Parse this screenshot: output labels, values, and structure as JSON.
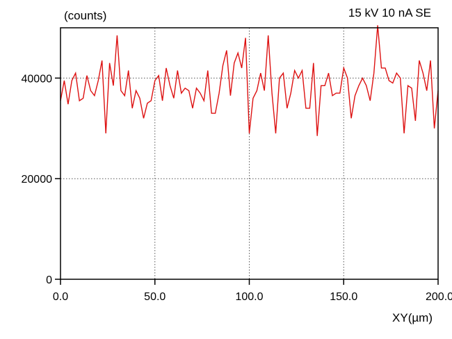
{
  "chart_data": {
    "type": "line",
    "ylabel": "(counts)",
    "xlabel": "XY(µm)",
    "annotation": "15 kV 10 nA SE",
    "xlim": [
      0,
      200
    ],
    "ylim": [
      0,
      50000
    ],
    "x_ticks": [
      0,
      50,
      100,
      150,
      200
    ],
    "x_tick_labels": [
      "0.0",
      "50.0",
      "100.0",
      "150.0",
      "200.0"
    ],
    "y_ticks": [
      0,
      20000,
      40000
    ],
    "y_tick_labels": [
      "0",
      "20000",
      "40000"
    ],
    "grid": true,
    "line_color": "#dd1111",
    "series": [
      {
        "x": [
          0,
          2,
          4,
          6,
          8,
          10,
          12,
          14,
          16,
          18,
          20,
          22,
          24,
          26,
          28,
          30,
          32,
          34,
          36,
          38,
          40,
          42,
          44,
          46,
          48,
          50,
          52,
          54,
          56,
          58,
          60,
          62,
          64,
          66,
          68,
          70,
          72,
          74,
          76,
          78,
          80,
          82,
          84,
          86,
          88,
          90,
          92,
          94,
          96,
          98,
          100,
          102,
          104,
          106,
          108,
          110,
          112,
          114,
          116,
          118,
          120,
          122,
          124,
          126,
          128,
          130,
          132,
          134,
          136,
          138,
          140,
          142,
          144,
          146,
          148,
          150,
          152,
          154,
          156,
          158,
          160,
          162,
          164,
          166,
          168,
          170,
          172,
          174,
          176,
          178,
          180,
          182,
          184,
          186,
          188,
          190,
          192,
          194,
          196,
          198,
          200
        ],
        "values": [
          35500,
          39500,
          34800,
          39500,
          41000,
          35500,
          36000,
          40500,
          37500,
          36500,
          39500,
          43500,
          29000,
          43000,
          38500,
          48500,
          37500,
          36500,
          41500,
          34000,
          37500,
          36000,
          32000,
          35000,
          35500,
          39500,
          40500,
          35500,
          42000,
          38500,
          36000,
          41500,
          37000,
          38000,
          37500,
          34000,
          38000,
          37000,
          35500,
          41500,
          33000,
          33000,
          37000,
          42500,
          45500,
          36500,
          43000,
          45000,
          42000,
          48000,
          29000,
          36000,
          37500,
          41000,
          37500,
          48500,
          37000,
          29000,
          40000,
          41000,
          34000,
          37000,
          41500,
          40000,
          41500,
          34000,
          34000,
          43000,
          28500,
          38500,
          38500,
          41000,
          36500,
          37000,
          37000,
          42000,
          40000,
          32000,
          36500,
          38500,
          40000,
          38500,
          35500,
          41000,
          50500,
          42000,
          42000,
          39500,
          39000,
          41000,
          40000,
          29000,
          38500,
          38000,
          31500,
          43500,
          41000,
          37500,
          43500,
          30000,
          37500
        ]
      }
    ]
  }
}
